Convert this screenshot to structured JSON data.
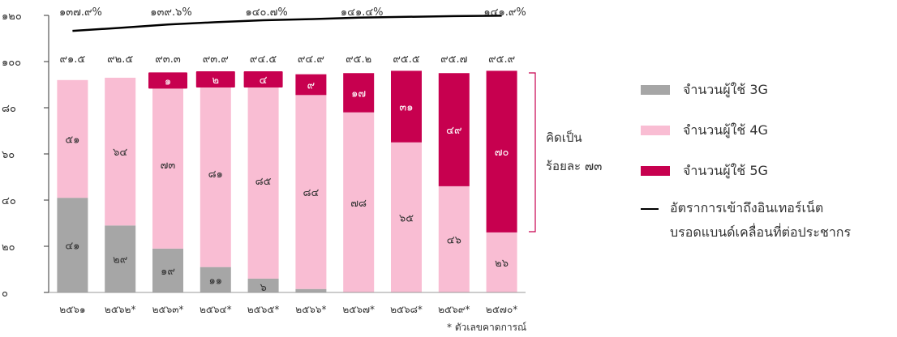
{
  "chart_data": {
    "type": "bar",
    "stacked": true,
    "categories": [
      "๒๕๖๑",
      "๒๕๖๒*",
      "๒๕๖๓*",
      "๒๕๖๔*",
      "๒๕๖๕*",
      "๒๕๖๖*",
      "๒๕๖๗*",
      "๒๕๖๘*",
      "๒๕๖๙*",
      "๒๕๗๐*"
    ],
    "ylim": [
      0,
      120
    ],
    "y_ticks": [
      0,
      20,
      40,
      60,
      80,
      100,
      120
    ],
    "y_tick_labels": [
      "๐",
      "๒๐",
      "๔๐",
      "๖๐",
      "๘๐",
      "๑๐๐",
      "๑๒๐"
    ],
    "series": [
      {
        "name": "จำนวนผู้ใช้ 3G",
        "color": "#a6a6a6",
        "values": [
          41,
          29,
          19,
          11,
          6,
          1.5,
          0,
          0,
          0,
          0
        ],
        "labels": [
          "๔๑",
          "๒๙",
          "๑๙",
          "๑๑",
          "๖",
          "",
          "",
          "",
          "",
          ""
        ]
      },
      {
        "name": "จำนวนผู้ใช้ 4G",
        "color": "#f9bdd3",
        "values": [
          51,
          64,
          73,
          81,
          85,
          84,
          78,
          65,
          46,
          26
        ],
        "labels": [
          "๕๑",
          "๖๔",
          "๗๓",
          "๘๑",
          "๘๕",
          "๘๔",
          "๗๘",
          "๖๕",
          "๔๖",
          "๒๖"
        ]
      },
      {
        "name": "จำนวนผู้ใช้ 5G",
        "color": "#c7004f",
        "values": [
          0,
          0,
          1,
          2,
          4,
          9,
          17,
          31,
          49,
          70
        ],
        "labels": [
          "",
          "",
          "๑",
          "๒",
          "๔",
          "๙",
          "๑๗",
          "๓๑",
          "๔๙",
          "๗๐"
        ]
      }
    ],
    "totals": [
      "๙๑.๕",
      "๙๒.๕",
      "๙๓.๓",
      "๙๓.๙",
      "๙๔.๕",
      "๙๔.๙",
      "๙๕.๒",
      "๙๕.๕",
      "๙๕.๗",
      "๙๕.๙"
    ],
    "penetration_line": {
      "name": "อัตราการเข้าถึงอินเทอร์เน็ตบรอดแบนด์เคลื่อนที่ต่อประชากร",
      "color": "#000000",
      "values": [
        137.9,
        138.7,
        139.6,
        140.2,
        140.7,
        141.0,
        141.4,
        141.6,
        141.8,
        141.9
      ],
      "labels": [
        "๑๓๗.๙%",
        "",
        "๑๓๙.๖%",
        "",
        "๑๔๐.๗%",
        "",
        "๑๔๑.๔%",
        "",
        "",
        "๑๔๑.๙%"
      ]
    },
    "bracket_annotation": {
      "line1": "คิดเป็น",
      "line2": "ร้อยละ ๗๓"
    },
    "footnote": "* ตัวเลขคาดการณ์"
  },
  "legend": {
    "items": [
      {
        "label": "จำนวนผู้ใช้ 3G",
        "color": "#a6a6a6"
      },
      {
        "label": "จำนวนผู้ใช้ 4G",
        "color": "#f9bdd3"
      },
      {
        "label": "จำนวนผู้ใช้ 5G",
        "color": "#c7004f"
      }
    ],
    "line_label_1": "อัตราการเข้าถึงอินเทอร์เน็ต",
    "line_label_2": "บรอดแบนด์เคลื่อนที่ต่อประชากร"
  }
}
